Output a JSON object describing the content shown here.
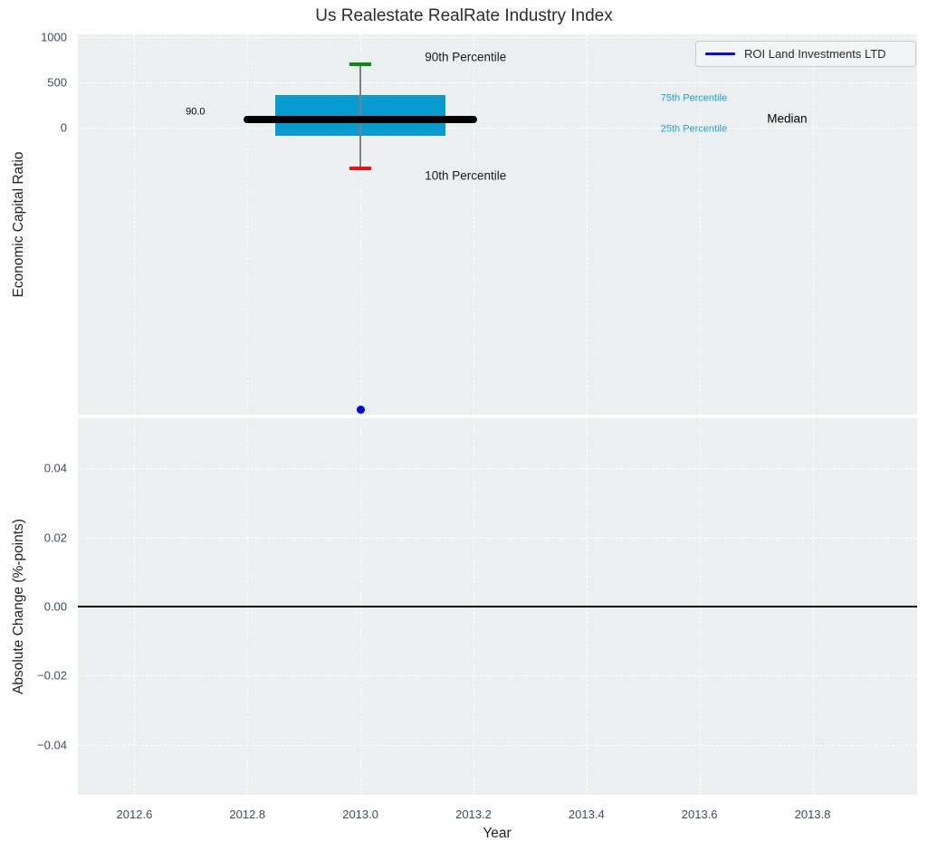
{
  "colors": {
    "plot_background": "#ebeff0",
    "grid": "#ffffff",
    "tick_label": "#3d4e63",
    "text": "#232323"
  },
  "chart_data": [
    {
      "type": "box",
      "title": "Us Realestate RealRate Industry Index",
      "ylabel": "Economic Capital Ratio",
      "ylim": [
        -3170,
        1030
      ],
      "yticks": [
        0,
        500,
        1000
      ],
      "ytick_labels": [
        "0",
        "500",
        "1000"
      ],
      "xlim": [
        2012.5,
        2013.985
      ],
      "grid": "white-dashed",
      "legend": {
        "label": "ROI Land Investments LTD",
        "loc": "upper-right",
        "line_color": "#0606f0"
      },
      "box": {
        "x": 2013.0,
        "p90": 700,
        "p75": 360,
        "median": 90,
        "p25": -85,
        "p10": -450,
        "box_halfwidth": 0.151,
        "median_halfwidth": 0.207,
        "cap_halfwidth": 0.019,
        "box_color": "#089bcf",
        "median_color": "#000000",
        "whisker_color": "#7f7f7f",
        "p90_cap_color": "#0a8c0a",
        "p10_cap_color": "#ec1111"
      },
      "series": [
        {
          "name": "ROI Land Investments LTD",
          "x": [
            2013.0
          ],
          "y": [
            -3115
          ],
          "color": "#0202ee",
          "marker": "circle"
        }
      ],
      "annotations": [
        {
          "name": "median-value-label",
          "text": "90.0",
          "x": 2012.708,
          "y": 170,
          "color": "#000000",
          "size": 11
        },
        {
          "name": "p90-label",
          "text": "90th Percentile",
          "x": 2013.186,
          "y": 780,
          "color": "#1a1a1a",
          "size": 13.5
        },
        {
          "name": "p10-label",
          "text": "10th Percentile",
          "x": 2013.186,
          "y": -530,
          "color": "#1a1a1a",
          "size": 13.5
        },
        {
          "name": "p75-label",
          "text": "75th Percentile",
          "x": 2013.59,
          "y": 320,
          "color": "#1d9fd4",
          "size": 11
        },
        {
          "name": "p25-label",
          "text": "25th Percentile",
          "x": 2013.59,
          "y": -20,
          "color": "#1d9fd4",
          "size": 11
        },
        {
          "name": "median-label",
          "text": "Median",
          "x": 2013.755,
          "y": 100,
          "color": "#000000",
          "size": 13.5
        }
      ]
    },
    {
      "type": "line",
      "ylabel": "Absolute Change (%-points)",
      "xlabel": "Year",
      "ylim": [
        -0.0545,
        0.0545
      ],
      "yticks": [
        -0.04,
        -0.02,
        0.0,
        0.02,
        0.04
      ],
      "ytick_labels": [
        "−0.04",
        "−0.02",
        "0.00",
        "0.02",
        "0.04"
      ],
      "xlim": [
        2012.5,
        2013.985
      ],
      "xticks": [
        2012.6,
        2012.8,
        2013.0,
        2013.2,
        2013.4,
        2013.6,
        2013.8
      ],
      "xtick_labels": [
        "2012.6",
        "2012.8",
        "2013.0",
        "2013.2",
        "2013.4",
        "2013.6",
        "2013.8"
      ],
      "zero_line": {
        "y": 0.0,
        "color": "#000000"
      },
      "series": [],
      "grid": "white-dashed"
    }
  ]
}
